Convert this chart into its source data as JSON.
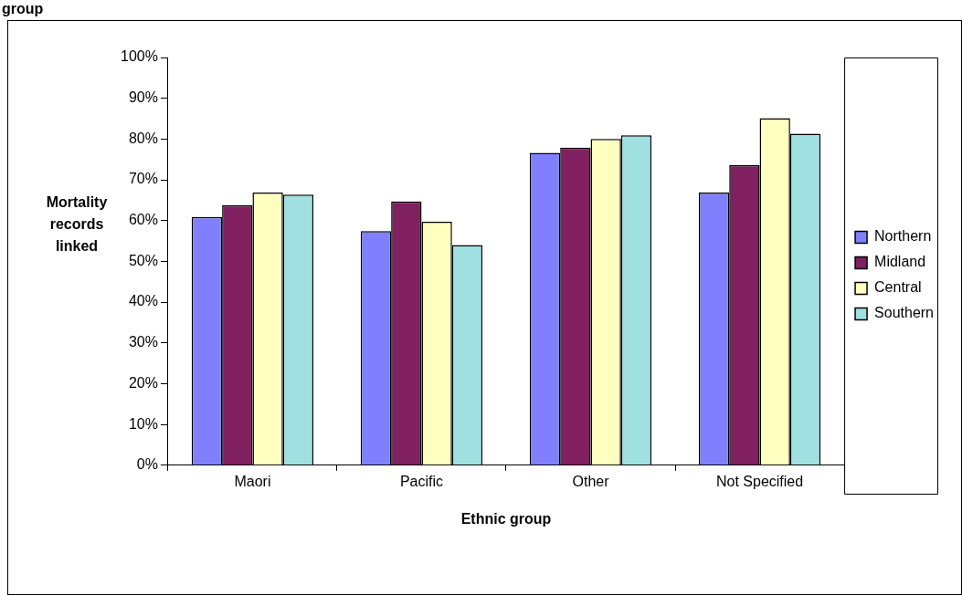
{
  "chart_data": {
    "type": "bar",
    "title": "group",
    "xlabel": "Ethnic group",
    "ylabel": "Mortality records linked",
    "categories": [
      "Maori",
      "Pacific",
      "Other",
      "Not Specified"
    ],
    "series": [
      {
        "name": "Northern",
        "color": "#8080ff",
        "values": [
          60.9,
          57.4,
          76.6,
          66.9
        ]
      },
      {
        "name": "Midland",
        "color": "#802060",
        "values": [
          63.8,
          64.7,
          77.9,
          73.6
        ]
      },
      {
        "name": "Central",
        "color": "#ffffc0",
        "values": [
          66.9,
          59.7,
          80.0,
          85.1
        ]
      },
      {
        "name": "Southern",
        "color": "#a0e0e0",
        "values": [
          66.4,
          54.0,
          80.9,
          81.3
        ]
      }
    ],
    "ylim": [
      0,
      100
    ],
    "yticks": [
      {
        "value": 0,
        "label": "0%"
      },
      {
        "value": 10,
        "label": "10%"
      },
      {
        "value": 20,
        "label": "20%"
      },
      {
        "value": 30,
        "label": "30%"
      },
      {
        "value": 40,
        "label": "40%"
      },
      {
        "value": 50,
        "label": "50%"
      },
      {
        "value": 60,
        "label": "60%"
      },
      {
        "value": 70,
        "label": "70%"
      },
      {
        "value": 80,
        "label": "80%"
      },
      {
        "value": 90,
        "label": "90%"
      },
      {
        "value": 100,
        "label": "100%"
      }
    ],
    "grid": false,
    "legend": "right"
  }
}
